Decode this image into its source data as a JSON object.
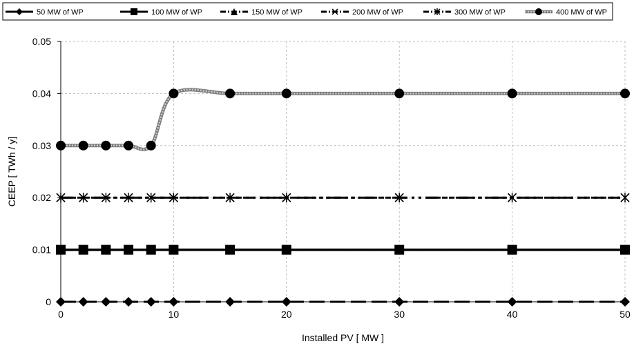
{
  "chart_data": {
    "type": "line",
    "xlabel": "Installed PV [ MW ]",
    "ylabel": "CEEP [ TWh / y]",
    "x": [
      0,
      2,
      4,
      6,
      8,
      10,
      15,
      20,
      30,
      40,
      50
    ],
    "xlim": [
      0,
      50
    ],
    "ylim": [
      0,
      0.05
    ],
    "x_ticks": [
      0,
      10,
      20,
      30,
      40,
      50
    ],
    "y_ticks": [
      0,
      0.01,
      0.02,
      0.03,
      0.04,
      0.05
    ],
    "x_tick_labels": [
      "0",
      "10",
      "20",
      "30",
      "40",
      "50"
    ],
    "y_tick_labels": [
      "0",
      "0.01",
      "0.02",
      "0.03",
      "0.04",
      "0.05"
    ],
    "grid": "dashed",
    "legend_position": "top",
    "series": [
      {
        "name": "50 MW of WP",
        "values": [
          0,
          0,
          0,
          0,
          0,
          0,
          0,
          0,
          0,
          0,
          0
        ],
        "marker": "diamond"
      },
      {
        "name": "100 MW of WP",
        "values": [
          0.01,
          0.01,
          0.01,
          0.01,
          0.01,
          0.01,
          0.01,
          0.01,
          0.01,
          0.01,
          0.01
        ],
        "marker": "square"
      },
      {
        "name": "150 MW of WP",
        "values": [
          0.01,
          0.01,
          0.01,
          0.01,
          0.01,
          0.01,
          0.01,
          0.01,
          0.01,
          0.01,
          0.01
        ],
        "marker": "triangle"
      },
      {
        "name": "200 MW of WP",
        "values": [
          0.02,
          0.02,
          0.02,
          0.02,
          0.02,
          0.02,
          0.02,
          0.02,
          0.02,
          0.02,
          0.02
        ],
        "marker": "x"
      },
      {
        "name": "300 MW of WP",
        "values": [
          0.02,
          0.02,
          0.02,
          0.02,
          0.02,
          0.02,
          0.02,
          0.02,
          0.02,
          0.02,
          0.02
        ],
        "marker": "star"
      },
      {
        "name": "400 MW of WP",
        "values": [
          0.03,
          0.03,
          0.03,
          0.03,
          0.03,
          0.04,
          0.04,
          0.04,
          0.04,
          0.04,
          0.04
        ],
        "marker": "circle"
      }
    ]
  }
}
